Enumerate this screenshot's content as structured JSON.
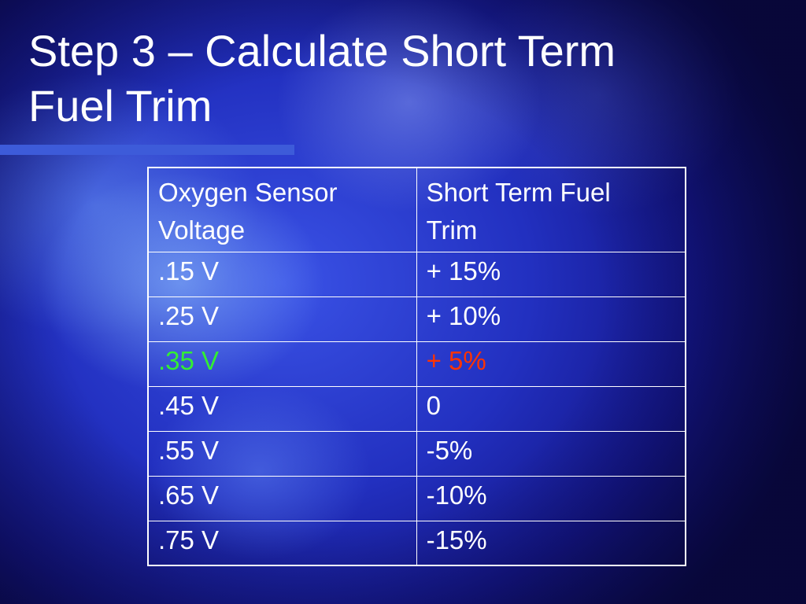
{
  "slide": {
    "title_line1": "Step 3 – Calculate Short Term",
    "title_line2": "Fuel Trim"
  },
  "table": {
    "header_line1": [
      "Oxygen Sensor",
      "Short Term Fuel"
    ],
    "header_line2": [
      "Voltage",
      "Trim"
    ],
    "rows": [
      {
        "voltage": ".15 V",
        "trim": "+ 15%"
      },
      {
        "voltage": ".25 V",
        "trim": "+ 10%"
      },
      {
        "voltage": ".35 V",
        "trim": "+ 5%"
      },
      {
        "voltage": ".45 V",
        "trim": "0"
      },
      {
        "voltage": ".55 V",
        "trim": "-5%"
      },
      {
        "voltage": ".65 V",
        "trim": "-10%"
      },
      {
        "voltage": ".75 V",
        "trim": "-15%"
      }
    ],
    "highlight_row": 2
  },
  "colors": {
    "text": "#ffffff",
    "highlight_voltage": "#33ee33",
    "highlight_trim": "#ff3300",
    "accent_bar": "#3d5bd9"
  }
}
